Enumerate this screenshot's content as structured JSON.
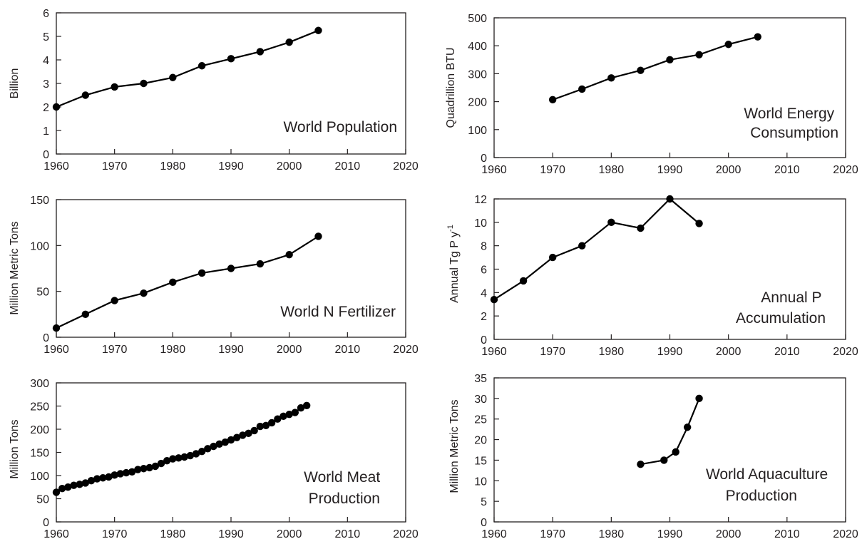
{
  "chart_data": [
    {
      "type": "line",
      "ylabel": "Billion",
      "annotation": [
        "World Population"
      ],
      "xlim": [
        1960,
        2020
      ],
      "ylim": [
        0,
        6
      ],
      "xticks": [
        1960,
        1970,
        1980,
        1990,
        2000,
        2010,
        2020
      ],
      "yticks": [
        0,
        1,
        2,
        3,
        4,
        5,
        6
      ],
      "x": [
        1960,
        1965,
        1970,
        1975,
        1980,
        1985,
        1990,
        1995,
        2000,
        2005
      ],
      "y": [
        2.0,
        2.5,
        2.85,
        3.0,
        3.25,
        3.75,
        4.05,
        4.35,
        4.75,
        5.25
      ]
    },
    {
      "type": "line",
      "ylabel": "Quadrillion BTU",
      "annotation": [
        "World Energy",
        "Consumption"
      ],
      "xlim": [
        1960,
        2020
      ],
      "ylim": [
        0,
        500
      ],
      "xticks": [
        1960,
        1970,
        1980,
        1990,
        2000,
        2010,
        2020
      ],
      "yticks": [
        0,
        100,
        200,
        300,
        400,
        500
      ],
      "x": [
        1970,
        1975,
        1980,
        1985,
        1990,
        1995,
        2000,
        2005
      ],
      "y": [
        207,
        245,
        285,
        312,
        350,
        368,
        405,
        432
      ]
    },
    {
      "type": "line",
      "ylabel": "Million Metric Tons",
      "annotation": [
        "World N Fertilizer"
      ],
      "xlim": [
        1960,
        2020
      ],
      "ylim": [
        0,
        150
      ],
      "xticks": [
        1960,
        1970,
        1980,
        1990,
        2000,
        2010,
        2020
      ],
      "yticks": [
        0,
        50,
        100,
        150
      ],
      "x": [
        1960,
        1965,
        1970,
        1975,
        1980,
        1985,
        1990,
        1995,
        2000,
        2005
      ],
      "y": [
        10,
        25,
        40,
        48,
        60,
        70,
        75,
        80,
        90,
        110
      ]
    },
    {
      "type": "line",
      "ylabel": "Annual Tg P y",
      "ylabel_superscript": "-1",
      "annotation": [
        "Annual P",
        "Accumulation"
      ],
      "xlim": [
        1960,
        2020
      ],
      "ylim": [
        0,
        12
      ],
      "xticks": [
        1960,
        1970,
        1980,
        1990,
        2000,
        2010,
        2020
      ],
      "yticks": [
        0,
        2,
        4,
        6,
        8,
        10,
        12
      ],
      "x": [
        1960,
        1965,
        1970,
        1975,
        1980,
        1985,
        1990,
        1995
      ],
      "y": [
        3.4,
        5.0,
        7.0,
        8.0,
        10.0,
        9.5,
        12.0,
        9.9
      ]
    },
    {
      "type": "line",
      "ylabel": "Million Tons",
      "annotation": [
        "World Meat",
        "Production"
      ],
      "xlim": [
        1960,
        2020
      ],
      "ylim": [
        0,
        300
      ],
      "xticks": [
        1960,
        1970,
        1980,
        1990,
        2000,
        2010,
        2020
      ],
      "yticks": [
        0,
        50,
        100,
        150,
        200,
        250,
        300
      ],
      "x": [
        1960,
        1961,
        1962,
        1963,
        1964,
        1965,
        1966,
        1967,
        1968,
        1969,
        1970,
        1971,
        1972,
        1973,
        1974,
        1975,
        1976,
        1977,
        1978,
        1979,
        1980,
        1981,
        1982,
        1983,
        1984,
        1985,
        1986,
        1987,
        1988,
        1989,
        1990,
        1991,
        1992,
        1993,
        1994,
        1995,
        1996,
        1997,
        1998,
        1999,
        2000,
        2001,
        2002,
        2003
      ],
      "y": [
        64,
        72,
        75,
        79,
        81,
        84,
        89,
        93,
        95,
        97,
        101,
        104,
        106,
        108,
        113,
        115,
        117,
        120,
        126,
        132,
        136,
        138,
        140,
        143,
        147,
        152,
        158,
        163,
        168,
        172,
        177,
        182,
        187,
        191,
        197,
        206,
        208,
        214,
        222,
        228,
        232,
        236,
        246,
        251
      ]
    },
    {
      "type": "line",
      "ylabel": "Million Metric Tons",
      "annotation": [
        "World Aquaculture",
        "Production"
      ],
      "xlim": [
        1960,
        2020
      ],
      "ylim": [
        0,
        35
      ],
      "xticks": [
        1960,
        1970,
        1980,
        1990,
        2000,
        2010,
        2020
      ],
      "yticks": [
        0,
        5,
        10,
        15,
        20,
        25,
        30,
        35
      ],
      "x": [
        1985,
        1989,
        1991,
        1993,
        1995
      ],
      "y": [
        14,
        15,
        17,
        23,
        30
      ]
    }
  ]
}
